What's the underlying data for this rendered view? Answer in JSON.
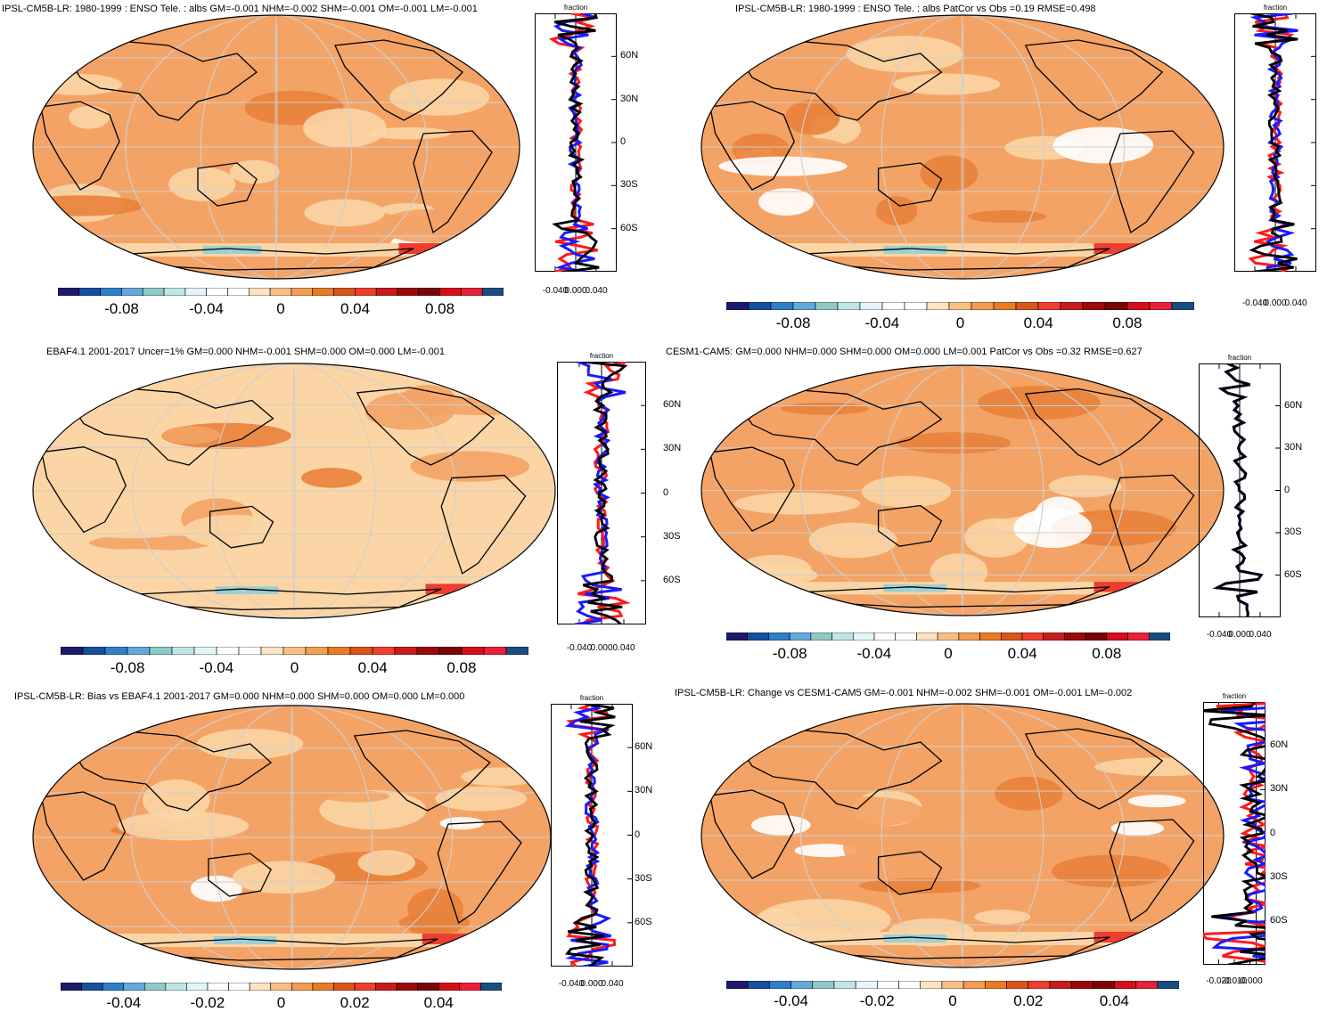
{
  "panels": [
    {
      "title": "IPSL-CM5B-LR: 1980-1999 : ENSO Tele. : albs GM=-0.001 NHM=-0.002 SHM=-0.001 OM=-0.001 LM=-0.001",
      "zonal_unit": "fraction",
      "zonal_xticks": [
        "-0.040",
        "0.000",
        "0.040"
      ],
      "lat_labels": [
        "60N",
        "30N",
        "0",
        "30S",
        "60S"
      ],
      "colorbar_labels": [
        "-0.08",
        "-0.04",
        "0",
        "0.04",
        "0.08"
      ],
      "map_fill": "#f4a366"
    },
    {
      "title": "IPSL-CM5B-LR: 1980-1999 : ENSO Tele. : albs PatCor vs Obs =0.19 RMSE=0.498",
      "zonal_unit": "fraction",
      "zonal_xticks": [
        "-0.040",
        "0.000",
        "0.040"
      ],
      "lat_labels": [],
      "colorbar_labels": [
        "-0.08",
        "-0.04",
        "0",
        "0.04",
        "0.08"
      ],
      "map_fill": "#f4a366"
    },
    {
      "title": "EBAF4.1 2001-2017 Uncer=1% GM=0.000 NHM=-0.001 SHM=0.000 OM=0.000 LM=-0.001",
      "zonal_unit": "fraction",
      "zonal_xticks": [
        "-0.040",
        "0.000",
        "0.040"
      ],
      "lat_labels": [
        "60N",
        "30N",
        "0",
        "30S",
        "60S"
      ],
      "colorbar_labels": [
        "-0.08",
        "-0.04",
        "0",
        "0.04",
        "0.08"
      ],
      "map_fill": "#fbd5a5"
    },
    {
      "title": "CESM1-CAM5: GM=0.000 NHM=0.000 SHM=0.000 OM=0.000 LM=0.001 PatCor vs Obs =0.32 RMSE=0.627",
      "zonal_unit": "fraction",
      "zonal_xticks": [
        "-0.040",
        "0.000",
        "0.040"
      ],
      "lat_labels": [
        "60N",
        "30N",
        "0",
        "30S",
        "60S"
      ],
      "colorbar_labels": [
        "-0.08",
        "-0.04",
        "0",
        "0.04",
        "0.08"
      ],
      "map_fill": "#f4a366"
    },
    {
      "title": "IPSL-CM5B-LR: Bias vs EBAF4.1 2001-2017 GM=0.000 NHM=0.000 SHM=0.000 OM=0.000 LM=0.000",
      "zonal_unit": "fraction",
      "zonal_xticks": [
        "-0.040",
        "0.000",
        "0.040"
      ],
      "lat_labels": [
        "60N",
        "30N",
        "0",
        "30S",
        "60S"
      ],
      "colorbar_labels": [
        "-0.04",
        "-0.02",
        "0",
        "0.02",
        "0.04"
      ],
      "map_fill": "#f4a366"
    },
    {
      "title": "IPSL-CM5B-LR: Change vs CESM1-CAM5 GM=-0.001 NHM=-0.002 SHM=-0.001 OM=-0.001 LM=-0.002",
      "zonal_unit": "fraction",
      "zonal_xticks": [
        "-0.020",
        "-0.010",
        "-0.000"
      ],
      "lat_labels": [
        "60N",
        "30N",
        "0",
        "30S",
        "60S"
      ],
      "colorbar_labels": [
        "-0.04",
        "-0.02",
        "0",
        "0.02",
        "0.04"
      ],
      "map_fill": "#f4a366"
    }
  ],
  "colorbar_colors": [
    "#1c1a6b",
    "#14509e",
    "#2f7fc8",
    "#64a9dc",
    "#8fcac8",
    "#bfe5e8",
    "#e4f5f8",
    "#ffffff",
    "#ffffff",
    "#fce3c2",
    "#f8bf85",
    "#f29d52",
    "#e87b26",
    "#d9561a",
    "#ef3d2f",
    "#c81c1c",
    "#9a0a0a",
    "#7a0505",
    "#d40f1a",
    "#e8203a",
    "#1b4e80"
  ],
  "zonal_series_colors": {
    "model": "#ff1a1a",
    "obs": "#1a1aff",
    "mean": "#000000"
  }
}
